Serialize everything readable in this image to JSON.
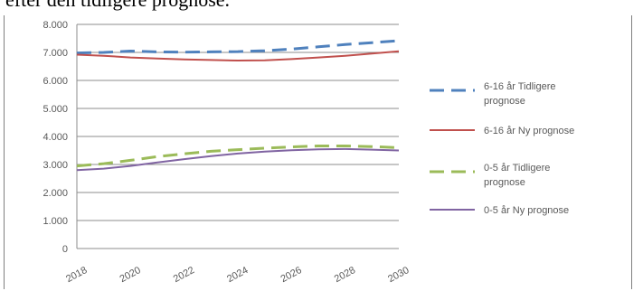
{
  "caption": "efter den tidligere prognose.",
  "chart_data": {
    "type": "line",
    "x": [
      2018,
      2019,
      2020,
      2021,
      2022,
      2023,
      2024,
      2025,
      2026,
      2027,
      2028,
      2029,
      2030
    ],
    "x_tick_labels": [
      "2018",
      "2020",
      "2022",
      "2024",
      "2026",
      "2028",
      "2030"
    ],
    "y_tick_labels": [
      "0",
      "1.000",
      "2.000",
      "3.000",
      "4.000",
      "5.000",
      "6.000",
      "7.000",
      "8.000"
    ],
    "ylim": [
      0,
      8000
    ],
    "grid": true,
    "legend_position": "right",
    "series": [
      {
        "name": "6-16 år Tidligere prognose",
        "color": "#4f81bd",
        "dash": true,
        "values": [
          6980,
          7000,
          7050,
          7020,
          7010,
          7020,
          7030,
          7060,
          7120,
          7200,
          7280,
          7350,
          7420
        ]
      },
      {
        "name": "6-16 år Ny prognose",
        "color": "#c0504d",
        "dash": false,
        "values": [
          6920,
          6880,
          6820,
          6780,
          6750,
          6730,
          6710,
          6720,
          6760,
          6820,
          6880,
          6960,
          7040
        ]
      },
      {
        "name": "0-5 år Tidligere prognose",
        "color": "#9bbb59",
        "dash": true,
        "values": [
          2950,
          3030,
          3150,
          3280,
          3380,
          3470,
          3530,
          3580,
          3630,
          3660,
          3660,
          3640,
          3600
        ]
      },
      {
        "name": "0-5 år Ny prognose",
        "color": "#8064a2",
        "dash": false,
        "values": [
          2800,
          2850,
          2950,
          3070,
          3190,
          3300,
          3390,
          3460,
          3510,
          3540,
          3550,
          3530,
          3500
        ]
      }
    ]
  }
}
